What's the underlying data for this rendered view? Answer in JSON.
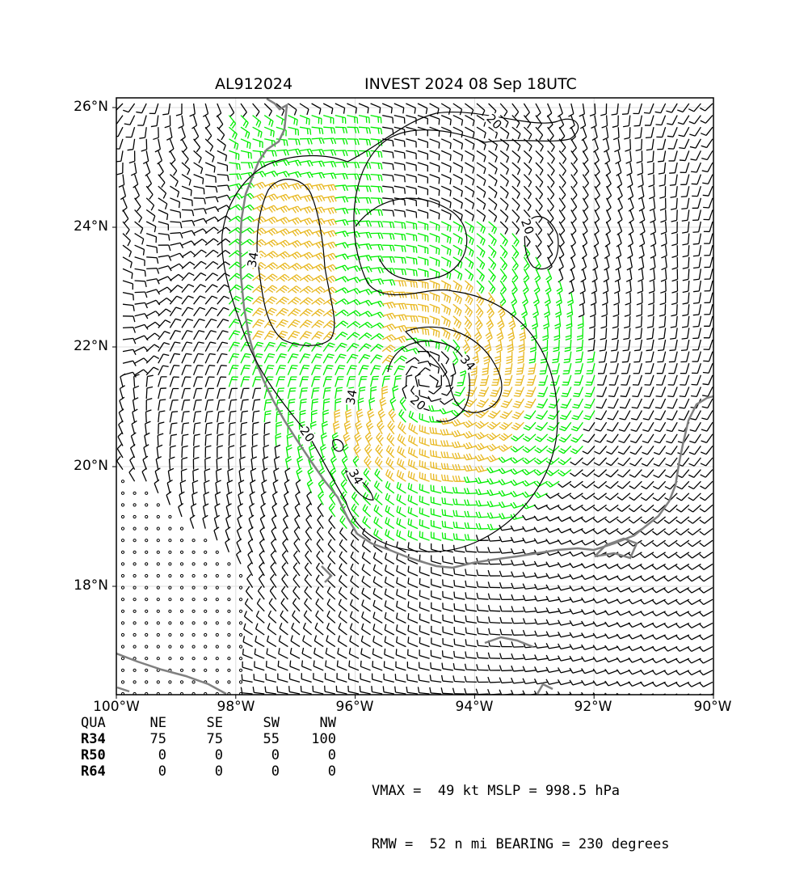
{
  "title": {
    "storm_id": "AL912024",
    "storm_label": "INVEST 2024 08 Sep 18UTC"
  },
  "map": {
    "lat_ticks": [
      "26°N",
      "24°N",
      "22°N",
      "20°N",
      "18°N"
    ],
    "lon_ticks": [
      "100°W",
      "98°W",
      "96°W",
      "94°W",
      "92°W",
      "90°W"
    ],
    "contour_labels": [
      "20",
      "20",
      "20",
      "20",
      "34",
      "34",
      "34",
      "34"
    ],
    "colors": {
      "coast": "#808080",
      "barb_normal": "#000000",
      "barb_34kt": "#00ee00",
      "barb_50kt": "#e8b820",
      "contour": "#000000"
    }
  },
  "radii_table": {
    "header": [
      "QUA",
      "NE",
      "SE",
      "SW",
      "NW"
    ],
    "rows": [
      {
        "label": "R34",
        "values": [
          "75",
          "75",
          "55",
          "100"
        ]
      },
      {
        "label": "R50",
        "values": [
          "0",
          "0",
          "0",
          "0"
        ]
      },
      {
        "label": "R64",
        "values": [
          "0",
          "0",
          "0",
          "0"
        ]
      }
    ]
  },
  "stats": {
    "line1": "VMAX =  49 kt MSLP = 998.5 hPa",
    "line2": "RMW =  52 n mi BEARING = 230 degrees"
  }
}
